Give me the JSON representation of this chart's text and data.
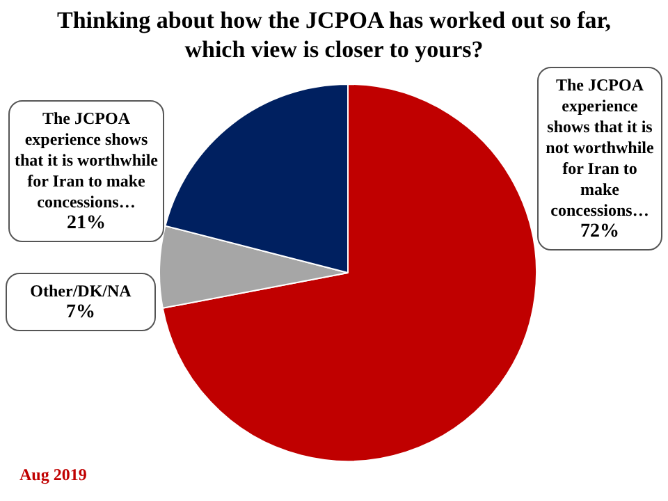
{
  "chart_data": {
    "type": "pie",
    "title": "Thinking about how the JCPOA has worked out so far, which view is closer to yours?",
    "categories": [
      "The JCPOA experience shows that it is not worthwhile for Iran to make concessions…",
      "Other/DK/NA",
      "The JCPOA experience shows that it is worthwhile for Iran to make concessions…"
    ],
    "values": [
      72,
      7,
      21
    ],
    "value_labels": [
      "72%",
      "7%",
      "21%"
    ],
    "colors": [
      "#c00000",
      "#a6a6a6",
      "#002060"
    ],
    "legend": false,
    "annotations": [
      "Aug 2019"
    ]
  }
}
